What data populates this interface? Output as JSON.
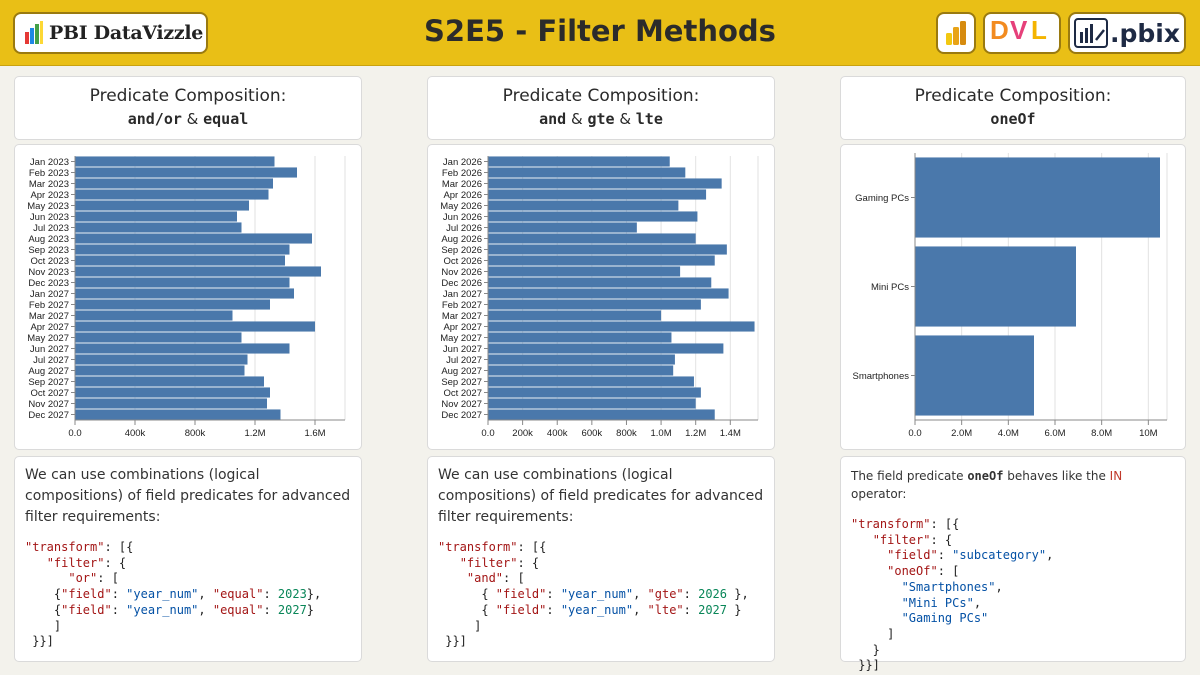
{
  "header": {
    "logo_text": "PBI DataVizzle",
    "title": "S2E5 - Filter Methods",
    "dvl_label": "DVL",
    "pbix_label": ".pbix"
  },
  "panels": [
    {
      "title_line1": "Predicate Composition:",
      "title_parts": [
        "and/or",
        " & ",
        "equal"
      ],
      "description": "We can use combinations (logical compositions) of field predicates for advanced filter requirements:",
      "code": "\"transform\": [{\n   \"filter\": {\n      \"or\": [\n    {\"field\": \"year_num\", \"equal\": 2023},\n    {\"field\": \"year_num\", \"equal\": 2027}\n    ]\n }}]"
    },
    {
      "title_line1": "Predicate Composition:",
      "title_parts": [
        "and",
        " & ",
        "gte",
        " & ",
        "lte"
      ],
      "description": "We can use combinations (logical compositions) of field predicates for advanced filter requirements:",
      "code": "\"transform\": [{\n   \"filter\": {\n    \"and\": [\n      { \"field\": \"year_num\", \"gte\": 2026 },\n      { \"field\": \"year_num\", \"lte\": 2027 }\n     ]\n }}]"
    },
    {
      "title_line1": "Predicate Composition:",
      "title_parts": [
        "oneOf"
      ],
      "description_prefix": "The field predicate ",
      "description_code": "oneOf",
      "description_mid": " behaves like the ",
      "description_in": "IN",
      "description_suffix": " operator:",
      "code": "\"transform\": [{\n   \"filter\": {\n     \"field\": \"subcategory\",\n     \"oneOf\": [\n       \"Smartphones\",\n       \"Mini PCs\",\n       \"Gaming PCs\"\n     ]\n   }\n }}]"
    }
  ],
  "chart_data": [
    {
      "type": "bar",
      "orientation": "horizontal",
      "title": "",
      "xlabel": "",
      "ylabel": "",
      "categories": [
        "Jan 2023",
        "Feb 2023",
        "Mar 2023",
        "Apr 2023",
        "May 2023",
        "Jun 2023",
        "Jul 2023",
        "Aug 2023",
        "Sep 2023",
        "Oct 2023",
        "Nov 2023",
        "Dec 2023",
        "Jan 2027",
        "Feb 2027",
        "Mar 2027",
        "Apr 2027",
        "May 2027",
        "Jun 2027",
        "Jul 2027",
        "Aug 2027",
        "Sep 2027",
        "Oct 2027",
        "Nov 2027",
        "Dec 2027"
      ],
      "values": [
        1330000,
        1480000,
        1320000,
        1290000,
        1160000,
        1080000,
        1110000,
        1580000,
        1430000,
        1400000,
        1640000,
        1430000,
        1460000,
        1300000,
        1050000,
        1600000,
        1110000,
        1430000,
        1150000,
        1130000,
        1260000,
        1300000,
        1280000,
        1370000
      ],
      "xlim": [
        0,
        1800000
      ],
      "ticks": [
        0,
        400000,
        800000,
        1200000,
        1600000
      ],
      "tick_labels": [
        "0.0",
        "400k",
        "800k",
        "1.2M",
        "1.6M"
      ],
      "grid": true,
      "color": "#4a78ab"
    },
    {
      "type": "bar",
      "orientation": "horizontal",
      "title": "",
      "xlabel": "",
      "ylabel": "",
      "categories": [
        "Jan 2026",
        "Feb 2026",
        "Mar 2026",
        "Apr 2026",
        "May 2026",
        "Jun 2026",
        "Jul 2026",
        "Aug 2026",
        "Sep 2026",
        "Oct 2026",
        "Nov 2026",
        "Dec 2026",
        "Jan 2027",
        "Feb 2027",
        "Mar 2027",
        "Apr 2027",
        "May 2027",
        "Jun 2027",
        "Jul 2027",
        "Aug 2027",
        "Sep 2027",
        "Oct 2027",
        "Nov 2027",
        "Dec 2027"
      ],
      "values": [
        1050000,
        1140000,
        1350000,
        1260000,
        1100000,
        1210000,
        860000,
        1200000,
        1380000,
        1310000,
        1110000,
        1290000,
        1390000,
        1230000,
        1000000,
        1540000,
        1060000,
        1360000,
        1080000,
        1070000,
        1190000,
        1230000,
        1200000,
        1310000
      ],
      "xlim": [
        0,
        1560000
      ],
      "ticks": [
        0,
        200000,
        400000,
        600000,
        800000,
        1000000,
        1200000,
        1400000
      ],
      "tick_labels": [
        "0.0",
        "200k",
        "400k",
        "600k",
        "800k",
        "1.0M",
        "1.2M",
        "1.4M"
      ],
      "grid": true,
      "color": "#4a78ab"
    },
    {
      "type": "bar",
      "orientation": "horizontal",
      "title": "",
      "xlabel": "",
      "ylabel": "",
      "categories": [
        "Gaming PCs",
        "Mini PCs",
        "Smartphones"
      ],
      "values": [
        10500000,
        6900000,
        5100000
      ],
      "xlim": [
        0,
        10800000
      ],
      "ticks": [
        0,
        2000000,
        4000000,
        6000000,
        8000000,
        10000000
      ],
      "tick_labels": [
        "0.0",
        "2.0M",
        "4.0M",
        "6.0M",
        "8.0M",
        "10M"
      ],
      "grid": true,
      "color": "#4a78ab"
    }
  ]
}
